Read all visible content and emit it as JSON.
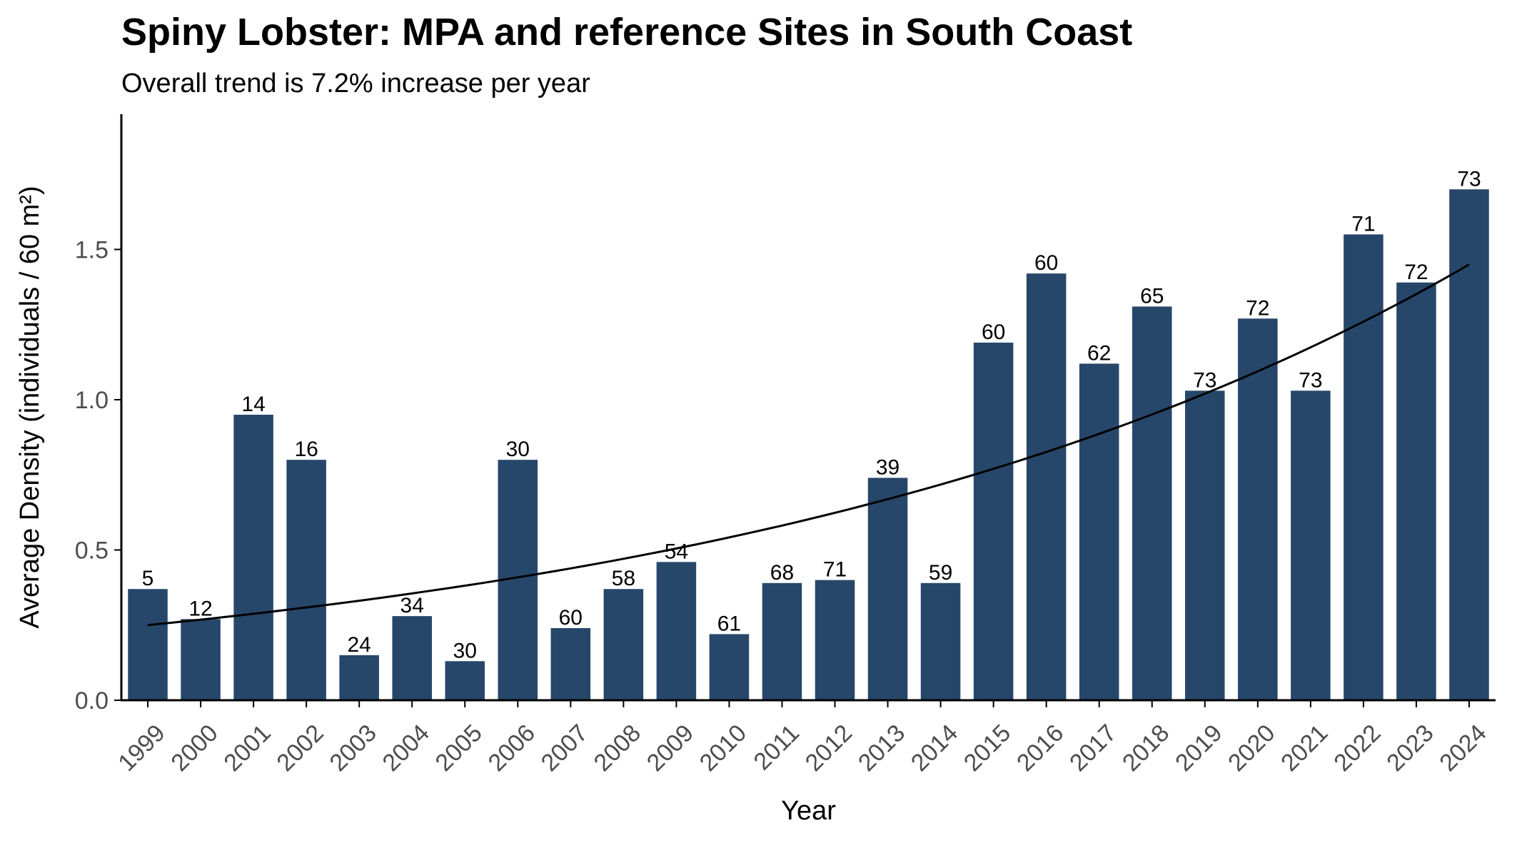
{
  "chart_data": {
    "type": "bar",
    "title": "Spiny Lobster: MPA and reference Sites in South Coast",
    "subtitle": "Overall trend is 7.2% increase per year",
    "xlabel": "Year",
    "ylabel": "Average Density (individuals / 60 m²)",
    "ylim": [
      0,
      1.95
    ],
    "yticks": [
      0,
      0.5,
      1,
      1.5
    ],
    "ytick_labels": [
      "0.0",
      "0.5",
      "1.0",
      "1.5"
    ],
    "categories": [
      "1999",
      "2000",
      "2001",
      "2002",
      "2003",
      "2004",
      "2005",
      "2006",
      "2007",
      "2008",
      "2009",
      "2010",
      "2011",
      "2012",
      "2013",
      "2014",
      "2015",
      "2016",
      "2017",
      "2018",
      "2019",
      "2020",
      "2021",
      "2022",
      "2023",
      "2024"
    ],
    "values": [
      0.37,
      0.27,
      0.95,
      0.8,
      0.15,
      0.28,
      0.13,
      0.8,
      0.24,
      0.37,
      0.46,
      0.22,
      0.39,
      0.4,
      0.74,
      0.39,
      1.19,
      1.42,
      1.12,
      1.31,
      1.03,
      1.27,
      1.03,
      1.55,
      1.39,
      1.7
    ],
    "bar_labels": [
      "5",
      "12",
      "14",
      "16",
      "24",
      "34",
      "30",
      "30",
      "60",
      "58",
      "54",
      "61",
      "68",
      "71",
      "39",
      "59",
      "60",
      "60",
      "62",
      "65",
      "73",
      "72",
      "73",
      "71",
      "72",
      "73"
    ],
    "trend": {
      "type": "exponential",
      "x": [
        "1999",
        "2024"
      ],
      "y": [
        0.25,
        1.45
      ]
    },
    "bar_color": "#26476A",
    "trend_color": "#000000",
    "grid": false,
    "legend": "none"
  }
}
